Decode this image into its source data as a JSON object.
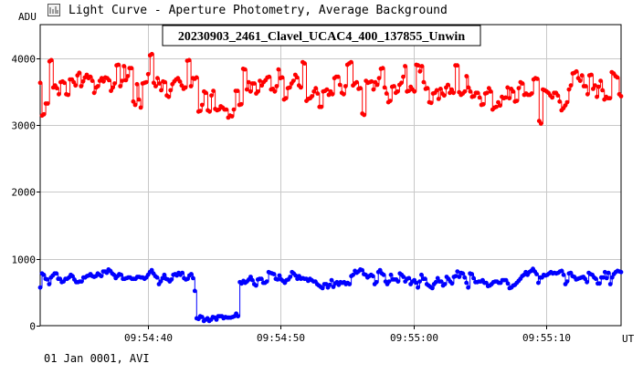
{
  "window": {
    "title": "Light Curve - Aperture Photometry, Average Background",
    "icon": "light-curve-icon"
  },
  "footer": {
    "note": "01 Jan 0001, AVI"
  },
  "chart_data": {
    "type": "line",
    "title": "20230903_2461_Clavel_UCAC4_400_137855_Unwin",
    "ylabel": "ADU",
    "xlabel": "UT",
    "ylim": [
      0,
      4500
    ],
    "yticks": [
      0,
      1000,
      2000,
      3000,
      4000
    ],
    "xlim": [
      "09:54:31.9",
      "09:55:15.6"
    ],
    "xticks": [
      "09:54:40",
      "09:54:50",
      "09:55:00",
      "09:55:10"
    ],
    "grid": true,
    "colors": {
      "target": "#0000ff",
      "comparison": "#ff0000"
    },
    "time_start": "09:54:31.9",
    "time_end": "09:55:15.6",
    "series": [
      {
        "values": [
          3630,
          3140,
          3160,
          3320,
          3320,
          3950,
          3970,
          3560,
          3590,
          3550,
          3460,
          3640,
          3650,
          3630,
          3460,
          3450,
          3680,
          3680,
          3640,
          3590,
          3740,
          3780,
          3580,
          3650,
          3710,
          3750,
          3700,
          3720,
          3660,
          3480,
          3560,
          3580,
          3660,
          3700,
          3650,
          3710,
          3700,
          3670,
          3510,
          3560,
          3620,
          3890,
          3900,
          3580,
          3660,
          3880,
          3670,
          3730,
          3850,
          3850,
          3350,
          3300,
          3610,
          3380,
          3260,
          3620,
          3630,
          3640,
          3760,
          4040,
          4060,
          3630,
          3580,
          3700,
          3620,
          3520,
          3650,
          3640,
          3440,
          3420,
          3520,
          3610,
          3650,
          3680,
          3700,
          3650,
          3590,
          3540,
          3560,
          3960,
          3970,
          3580,
          3700,
          3690,
          3710,
          3200,
          3210,
          3300,
          3500,
          3480,
          3220,
          3200,
          3440,
          3510,
          3240,
          3220,
          3230,
          3280,
          3260,
          3230,
          3230,
          3110,
          3140,
          3130,
          3230,
          3510,
          3510,
          3300,
          3310,
          3840,
          3830,
          3530,
          3640,
          3500,
          3620,
          3620,
          3470,
          3500,
          3660,
          3590,
          3640,
          3670,
          3710,
          3720,
          3530,
          3540,
          3500,
          3580,
          3830,
          3700,
          3710,
          3380,
          3400,
          3550,
          3560,
          3620,
          3660,
          3750,
          3710,
          3590,
          3560,
          3940,
          3920,
          3360,
          3390,
          3400,
          3430,
          3500,
          3550,
          3470,
          3270,
          3270,
          3500,
          3510,
          3530,
          3450,
          3500,
          3460,
          3700,
          3720,
          3720,
          3600,
          3480,
          3460,
          3580,
          3900,
          3920,
          3940,
          3590,
          3620,
          3640,
          3540,
          3550,
          3170,
          3150,
          3660,
          3630,
          3640,
          3650,
          3530,
          3640,
          3600,
          3700,
          3840,
          3850,
          3560,
          3470,
          3340,
          3360,
          3570,
          3580,
          3480,
          3500,
          3600,
          3630,
          3720,
          3880,
          3500,
          3510,
          3570,
          3530,
          3500,
          3900,
          3890,
          3800,
          3880,
          3640,
          3540,
          3550,
          3340,
          3330,
          3470,
          3480,
          3520,
          3390,
          3540,
          3470,
          3440,
          3560,
          3600,
          3480,
          3530,
          3480,
          3890,
          3890,
          3490,
          3450,
          3470,
          3500,
          3730,
          3560,
          3500,
          3420,
          3430,
          3480,
          3480,
          3410,
          3300,
          3310,
          3470,
          3480,
          3550,
          3500,
          3230,
          3260,
          3270,
          3340,
          3290,
          3420,
          3400,
          3410,
          3560,
          3400,
          3540,
          3500,
          3350,
          3360,
          3550,
          3640,
          3620,
          3450,
          3470,
          3450,
          3450,
          3470,
          3680,
          3700,
          3690,
          3060,
          3020,
          3530,
          3520,
          3500,
          3480,
          3440,
          3410,
          3480,
          3480,
          3440,
          3350,
          3220,
          3250,
          3290,
          3340,
          3530,
          3590,
          3770,
          3780,
          3800,
          3700,
          3660,
          3740,
          3580,
          3580,
          3460,
          3740,
          3750,
          3540,
          3590,
          3420,
          3570,
          3660,
          3520,
          3380,
          3420,
          3400,
          3400,
          3790,
          3770,
          3730,
          3710,
          3460,
          3430
        ]
      },
      {
        "values": [
          570,
          780,
          760,
          700,
          690,
          620,
          720,
          750,
          780,
          780,
          700,
          700,
          650,
          660,
          700,
          700,
          720,
          760,
          740,
          690,
          650,
          650,
          660,
          660,
          720,
          720,
          740,
          750,
          770,
          740,
          730,
          740,
          780,
          760,
          740,
          810,
          810,
          790,
          840,
          820,
          780,
          760,
          710,
          740,
          770,
          760,
          700,
          700,
          710,
          720,
          720,
          700,
          700,
          700,
          730,
          730,
          720,
          720,
          700,
          720,
          760,
          800,
          830,
          780,
          740,
          720,
          620,
          660,
          710,
          760,
          700,
          690,
          660,
          690,
          760,
          770,
          750,
          790,
          760,
          790,
          710,
          690,
          700,
          750,
          770,
          710,
          520,
          110,
          100,
          140,
          130,
          70,
          90,
          110,
          70,
          90,
          130,
          120,
          90,
          140,
          140,
          140,
          110,
          130,
          120,
          120,
          120,
          130,
          140,
          180,
          140,
          650,
          630,
          670,
          640,
          660,
          690,
          730,
          680,
          620,
          600,
          690,
          700,
          700,
          640,
          640,
          660,
          800,
          790,
          780,
          770,
          700,
          690,
          750,
          690,
          670,
          640,
          680,
          690,
          730,
          800,
          780,
          750,
          700,
          740,
          700,
          710,
          700,
          700,
          670,
          700,
          680,
          660,
          660,
          620,
          600,
          580,
          560,
          620,
          620,
          570,
          610,
          680,
          580,
          630,
          650,
          610,
          650,
          640,
          650,
          620,
          640,
          620,
          740,
          760,
          820,
          790,
          810,
          840,
          830,
          770,
          760,
          720,
          740,
          760,
          740,
          620,
          650,
          800,
          830,
          780,
          760,
          660,
          620,
          660,
          760,
          690,
          690,
          690,
          660,
          780,
          760,
          730,
          660,
          700,
          710,
          620,
          660,
          680,
          640,
          570,
          660,
          760,
          700,
          700,
          620,
          600,
          580,
          560,
          620,
          650,
          710,
          660,
          660,
          600,
          620,
          730,
          700,
          660,
          630,
          730,
          740,
          810,
          730,
          790,
          780,
          720,
          640,
          570,
          780,
          770,
          710,
          650,
          650,
          660,
          660,
          680,
          640,
          640,
          590,
          600,
          620,
          650,
          660,
          660,
          640,
          640,
          680,
          680,
          680,
          630,
          560,
          570,
          600,
          610,
          640,
          670,
          700,
          740,
          760,
          800,
          760,
          800,
          820,
          850,
          810,
          770,
          640,
          720,
          720,
          760,
          750,
          760,
          780,
          800,
          780,
          790,
          780,
          790,
          810,
          820,
          760,
          620,
          660,
          780,
          790,
          740,
          730,
          690,
          700,
          710,
          720,
          730,
          700,
          650,
          790,
          770,
          760,
          720,
          700,
          630,
          630,
          720,
          720,
          800,
          710,
          790,
          620,
          720,
          770,
          800,
          820,
          810,
          800
        ]
      }
    ]
  }
}
